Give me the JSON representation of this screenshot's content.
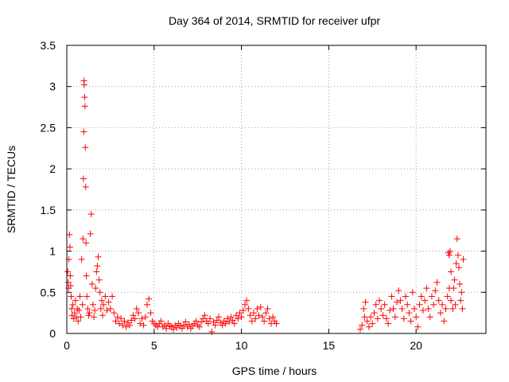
{
  "chart_data": {
    "type": "scatter",
    "title": "Day 364 of 2014, SRMTID for receiver ufpr",
    "xlabel": "GPS time / hours",
    "ylabel": "SRMTID / TECUs",
    "xlim": [
      0,
      24
    ],
    "ylim": [
      0,
      3.5
    ],
    "xticks": [
      0,
      5,
      10,
      15,
      20
    ],
    "xtick_labels": [
      "0",
      "5",
      "10",
      "15",
      "20"
    ],
    "yticks": [
      0,
      0.5,
      1,
      1.5,
      2,
      2.5,
      3,
      3.5
    ],
    "ytick_labels": [
      "0",
      "0.5",
      "1",
      "1.5",
      "2",
      "2.5",
      "3",
      "3.5"
    ],
    "grid": true,
    "marker": "+",
    "color": "#ff0000",
    "series": [
      {
        "name": "SRMTID",
        "points": [
          [
            0.05,
            0.75
          ],
          [
            0.08,
            0.62
          ],
          [
            0.1,
            0.55
          ],
          [
            0.12,
            0.9
          ],
          [
            0.15,
            1.2
          ],
          [
            0.18,
            1.05
          ],
          [
            0.2,
            0.7
          ],
          [
            0.22,
            0.58
          ],
          [
            0.25,
            0.45
          ],
          [
            0.28,
            0.3
          ],
          [
            0.3,
            0.22
          ],
          [
            0.35,
            0.35
          ],
          [
            0.4,
            0.18
          ],
          [
            0.45,
            0.25
          ],
          [
            0.5,
            0.4
          ],
          [
            0.55,
            0.2
          ],
          [
            0.6,
            0.3
          ],
          [
            0.65,
            0.15
          ],
          [
            0.7,
            0.28
          ],
          [
            0.75,
            0.45
          ],
          [
            0.8,
            0.2
          ],
          [
            0.85,
            0.9
          ],
          [
            0.9,
            0.35
          ],
          [
            0.93,
            1.15
          ],
          [
            0.95,
            1.88
          ],
          [
            0.97,
            2.45
          ],
          [
            0.98,
            3.07
          ],
          [
            1.0,
            3.02
          ],
          [
            1.02,
            2.87
          ],
          [
            1.04,
            2.76
          ],
          [
            1.06,
            2.26
          ],
          [
            1.08,
            1.78
          ],
          [
            1.1,
            1.1
          ],
          [
            1.12,
            0.7
          ],
          [
            1.15,
            0.45
          ],
          [
            1.2,
            0.3
          ],
          [
            1.25,
            0.22
          ],
          [
            1.3,
            0.25
          ],
          [
            1.35,
            1.21
          ],
          [
            1.4,
            1.45
          ],
          [
            1.45,
            0.6
          ],
          [
            1.5,
            0.35
          ],
          [
            1.55,
            0.2
          ],
          [
            1.6,
            0.28
          ],
          [
            1.65,
            0.55
          ],
          [
            1.7,
            0.75
          ],
          [
            1.75,
            0.82
          ],
          [
            1.8,
            0.93
          ],
          [
            1.85,
            0.65
          ],
          [
            1.9,
            0.5
          ],
          [
            1.95,
            0.3
          ],
          [
            2.0,
            0.4
          ],
          [
            2.05,
            0.22
          ],
          [
            2.1,
            0.35
          ],
          [
            2.2,
            0.45
          ],
          [
            2.3,
            0.28
          ],
          [
            2.4,
            0.38
          ],
          [
            2.5,
            0.3
          ],
          [
            2.6,
            0.45
          ],
          [
            2.7,
            0.25
          ],
          [
            2.8,
            0.15
          ],
          [
            2.9,
            0.2
          ],
          [
            3.0,
            0.12
          ],
          [
            3.1,
            0.18
          ],
          [
            3.2,
            0.1
          ],
          [
            3.3,
            0.15
          ],
          [
            3.4,
            0.08
          ],
          [
            3.5,
            0.13
          ],
          [
            3.6,
            0.1
          ],
          [
            3.7,
            0.16
          ],
          [
            3.8,
            0.22
          ],
          [
            3.9,
            0.18
          ],
          [
            4.0,
            0.3
          ],
          [
            4.1,
            0.25
          ],
          [
            4.2,
            0.12
          ],
          [
            4.3,
            0.18
          ],
          [
            4.4,
            0.1
          ],
          [
            4.5,
            0.2
          ],
          [
            4.6,
            0.35
          ],
          [
            4.7,
            0.42
          ],
          [
            4.8,
            0.25
          ],
          [
            4.9,
            0.15
          ],
          [
            5.0,
            0.12
          ],
          [
            5.1,
            0.1
          ],
          [
            5.2,
            0.08
          ],
          [
            5.3,
            0.12
          ],
          [
            5.4,
            0.15
          ],
          [
            5.5,
            0.08
          ],
          [
            5.6,
            0.1
          ],
          [
            5.7,
            0.06
          ],
          [
            5.8,
            0.12
          ],
          [
            5.9,
            0.09
          ],
          [
            6.0,
            0.08
          ],
          [
            6.1,
            0.05
          ],
          [
            6.2,
            0.1
          ],
          [
            6.3,
            0.07
          ],
          [
            6.4,
            0.12
          ],
          [
            6.5,
            0.09
          ],
          [
            6.6,
            0.06
          ],
          [
            6.7,
            0.1
          ],
          [
            6.8,
            0.14
          ],
          [
            6.9,
            0.08
          ],
          [
            7.0,
            0.11
          ],
          [
            7.1,
            0.06
          ],
          [
            7.2,
            0.09
          ],
          [
            7.3,
            0.12
          ],
          [
            7.4,
            0.15
          ],
          [
            7.5,
            0.1
          ],
          [
            7.6,
            0.08
          ],
          [
            7.7,
            0.14
          ],
          [
            7.8,
            0.18
          ],
          [
            7.9,
            0.22
          ],
          [
            8.0,
            0.15
          ],
          [
            8.1,
            0.12
          ],
          [
            8.2,
            0.18
          ],
          [
            8.3,
            0.02
          ],
          [
            8.4,
            0.14
          ],
          [
            8.5,
            0.1
          ],
          [
            8.6,
            0.16
          ],
          [
            8.7,
            0.2
          ],
          [
            8.8,
            0.13
          ],
          [
            8.9,
            0.1
          ],
          [
            9.0,
            0.15
          ],
          [
            9.1,
            0.12
          ],
          [
            9.2,
            0.18
          ],
          [
            9.3,
            0.14
          ],
          [
            9.4,
            0.2
          ],
          [
            9.5,
            0.16
          ],
          [
            9.6,
            0.12
          ],
          [
            9.7,
            0.22
          ],
          [
            9.8,
            0.18
          ],
          [
            9.9,
            0.25
          ],
          [
            10.0,
            0.2
          ],
          [
            10.1,
            0.28
          ],
          [
            10.2,
            0.35
          ],
          [
            10.3,
            0.4
          ],
          [
            10.4,
            0.3
          ],
          [
            10.5,
            0.22
          ],
          [
            10.6,
            0.15
          ],
          [
            10.7,
            0.25
          ],
          [
            10.8,
            0.18
          ],
          [
            10.9,
            0.3
          ],
          [
            11.0,
            0.22
          ],
          [
            11.1,
            0.32
          ],
          [
            11.2,
            0.2
          ],
          [
            11.3,
            0.15
          ],
          [
            11.4,
            0.25
          ],
          [
            11.5,
            0.3
          ],
          [
            11.6,
            0.18
          ],
          [
            11.7,
            0.12
          ],
          [
            11.8,
            0.2
          ],
          [
            11.9,
            0.15
          ],
          [
            12.0,
            0.12
          ],
          [
            16.8,
            0.05
          ],
          [
            16.9,
            0.1
          ],
          [
            17.0,
            0.3
          ],
          [
            17.05,
            0.2
          ],
          [
            17.1,
            0.38
          ],
          [
            17.2,
            0.15
          ],
          [
            17.3,
            0.08
          ],
          [
            17.4,
            0.2
          ],
          [
            17.5,
            0.12
          ],
          [
            17.6,
            0.25
          ],
          [
            17.7,
            0.35
          ],
          [
            17.8,
            0.18
          ],
          [
            17.9,
            0.4
          ],
          [
            18.0,
            0.3
          ],
          [
            18.1,
            0.22
          ],
          [
            18.2,
            0.35
          ],
          [
            18.3,
            0.18
          ],
          [
            18.4,
            0.12
          ],
          [
            18.5,
            0.28
          ],
          [
            18.6,
            0.45
          ],
          [
            18.7,
            0.3
          ],
          [
            18.8,
            0.2
          ],
          [
            18.9,
            0.38
          ],
          [
            19.0,
            0.52
          ],
          [
            19.1,
            0.4
          ],
          [
            19.2,
            0.3
          ],
          [
            19.3,
            0.18
          ],
          [
            19.4,
            0.45
          ],
          [
            19.5,
            0.35
          ],
          [
            19.6,
            0.25
          ],
          [
            19.7,
            0.15
          ],
          [
            19.8,
            0.5
          ],
          [
            19.9,
            0.3
          ],
          [
            20.0,
            0.2
          ],
          [
            20.1,
            0.08
          ],
          [
            20.2,
            0.35
          ],
          [
            20.3,
            0.45
          ],
          [
            20.4,
            0.28
          ],
          [
            20.5,
            0.4
          ],
          [
            20.6,
            0.55
          ],
          [
            20.7,
            0.3
          ],
          [
            20.8,
            0.2
          ],
          [
            20.9,
            0.45
          ],
          [
            21.0,
            0.35
          ],
          [
            21.1,
            0.52
          ],
          [
            21.2,
            0.62
          ],
          [
            21.3,
            0.4
          ],
          [
            21.4,
            0.25
          ],
          [
            21.5,
            0.35
          ],
          [
            21.6,
            0.15
          ],
          [
            21.7,
            0.3
          ],
          [
            21.8,
            0.45
          ],
          [
            21.9,
            0.55
          ],
          [
            22.0,
            0.4
          ],
          [
            22.1,
            0.3
          ],
          [
            22.2,
            0.65
          ],
          [
            22.3,
            0.85
          ],
          [
            22.35,
            1.15
          ],
          [
            22.4,
            0.95
          ],
          [
            22.45,
            0.8
          ],
          [
            22.5,
            0.6
          ],
          [
            22.55,
            0.4
          ],
          [
            22.6,
            0.5
          ],
          [
            22.65,
            0.3
          ],
          [
            22.7,
            0.9
          ],
          [
            21.85,
            0.98
          ],
          [
            21.9,
            0.95
          ],
          [
            21.95,
            1.0
          ],
          [
            22.0,
            0.75
          ],
          [
            22.15,
            0.55
          ],
          [
            22.25,
            0.35
          ]
        ]
      }
    ]
  }
}
